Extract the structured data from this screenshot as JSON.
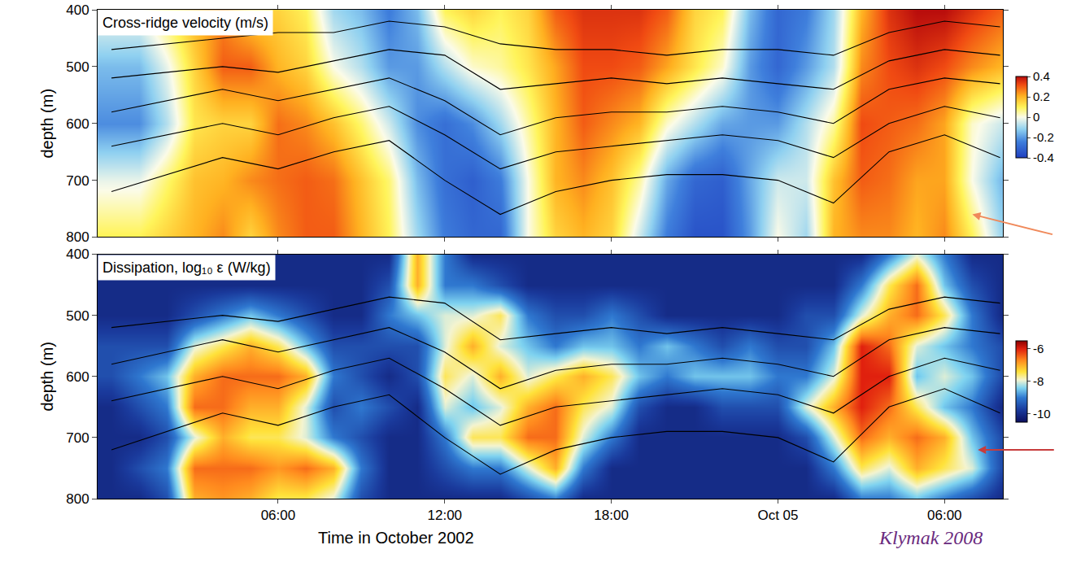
{
  "chart_data": [
    {
      "type": "heatmap",
      "title": "Cross-ridge velocity (m/s)",
      "ylabel": "depth (m)",
      "x": [
        0,
        1,
        2,
        3,
        4,
        5,
        6,
        7,
        8,
        9,
        10,
        11,
        12,
        13,
        14,
        15,
        16,
        17,
        18,
        19,
        20,
        21,
        22,
        23,
        24,
        25,
        26,
        27,
        28,
        29,
        30,
        31,
        32
      ],
      "y": [
        400,
        500,
        600,
        700,
        800
      ],
      "cells": [
        [
          0,
          -0.15,
          -0.22,
          -0.02,
          0.1
        ],
        [
          0,
          -0.15,
          -0.22,
          -0.02,
          0.1
        ],
        [
          0.1,
          -0.02,
          -0.08,
          0.08,
          0.15
        ],
        [
          0.2,
          0.15,
          0.12,
          0.18,
          0.2
        ],
        [
          0.25,
          0.3,
          0.15,
          0.2,
          0.25
        ],
        [
          0.15,
          0.3,
          0.15,
          0.25,
          0.15
        ],
        [
          0.15,
          0.2,
          0.28,
          0.28,
          0.25
        ],
        [
          0.1,
          0.15,
          0.25,
          0.3,
          0.3
        ],
        [
          -0.1,
          0,
          0.18,
          0.28,
          0.3
        ],
        [
          -0.15,
          -0.08,
          0.08,
          0.18,
          0.2
        ],
        [
          -0.25,
          -0.2,
          -0.05,
          0.08,
          0.1
        ],
        [
          -0.15,
          -0.2,
          -0.22,
          -0.15,
          -0.1
        ],
        [
          0.1,
          -0.08,
          -0.28,
          -0.28,
          -0.25
        ],
        [
          0.15,
          0.02,
          -0.22,
          -0.32,
          -0.3
        ],
        [
          0.1,
          0.05,
          -0.1,
          -0.25,
          -0.3
        ],
        [
          0.15,
          0.12,
          0.05,
          0,
          0
        ],
        [
          0.3,
          0.22,
          0.2,
          0.2,
          0.15
        ],
        [
          0.35,
          0.32,
          0.3,
          0.25,
          0.2
        ],
        [
          0.35,
          0.32,
          0.25,
          0.18,
          0.15
        ],
        [
          0.35,
          0.3,
          0.2,
          0.05,
          -0.05
        ],
        [
          0.3,
          0.22,
          0.02,
          -0.18,
          -0.25
        ],
        [
          0.15,
          0.12,
          -0.08,
          -0.3,
          -0.35
        ],
        [
          0.1,
          0.02,
          -0.18,
          -0.32,
          -0.35
        ],
        [
          -0.15,
          -0.2,
          -0.2,
          -0.18,
          -0.2
        ],
        [
          -0.3,
          -0.3,
          -0.2,
          -0.05,
          0
        ],
        [
          -0.25,
          -0.2,
          -0.08,
          -0.05,
          -0.1
        ],
        [
          -0.1,
          -0.08,
          0.05,
          0.18,
          0.2
        ],
        [
          0.2,
          0.25,
          0.32,
          0.3,
          0.25
        ],
        [
          0.35,
          0.32,
          0.3,
          0.28,
          0.25
        ],
        [
          0.4,
          0.35,
          0.28,
          0.22,
          0.2
        ],
        [
          0.4,
          0.32,
          0.22,
          0.22,
          0.25
        ],
        [
          0.35,
          0.25,
          0.02,
          0,
          0.1
        ],
        [
          0.3,
          0.2,
          -0.05,
          -0.15,
          -0.1
        ]
      ],
      "colorbar_range": [
        -0.4,
        0.4
      ],
      "colorbar_ticks": [
        0.4,
        0.2,
        0,
        -0.2,
        -0.4
      ],
      "isopycnals": {
        "color": "#000000",
        "x": [
          0,
          2,
          4,
          6,
          8,
          10,
          12,
          14,
          16,
          18,
          20,
          22,
          24,
          26,
          28,
          30,
          32
        ],
        "depths": [
          [
            470,
            460,
            450,
            440,
            440,
            420,
            430,
            460,
            470,
            470,
            480,
            470,
            470,
            480,
            440,
            420,
            430
          ],
          [
            520,
            510,
            500,
            510,
            490,
            470,
            480,
            540,
            530,
            520,
            530,
            520,
            530,
            540,
            490,
            470,
            480
          ],
          [
            580,
            560,
            540,
            560,
            540,
            520,
            560,
            620,
            590,
            580,
            580,
            570,
            580,
            600,
            540,
            520,
            530
          ],
          [
            640,
            620,
            600,
            620,
            590,
            570,
            620,
            680,
            650,
            640,
            630,
            620,
            630,
            660,
            600,
            570,
            590
          ],
          [
            720,
            690,
            660,
            680,
            650,
            630,
            700,
            760,
            720,
            700,
            690,
            690,
            700,
            740,
            650,
            620,
            660
          ]
        ]
      },
      "xlim": [
        -0.5,
        32.1
      ],
      "xticks": [
        {
          "value": 6,
          "label": "06:00"
        },
        {
          "value": 12,
          "label": "12:00"
        },
        {
          "value": 18,
          "label": "18:00"
        },
        {
          "value": 24,
          "label": "Oct 05"
        },
        {
          "value": 30,
          "label": "06:00"
        }
      ],
      "ylim": [
        800,
        400
      ],
      "yticks": [
        400,
        500,
        600,
        700,
        800
      ],
      "tick_labels": "y"
    },
    {
      "type": "heatmap",
      "title": "Dissipation, log₁₀ ε (W/kg)",
      "ylabel": "depth (m)",
      "xlabel": "Time in October 2002",
      "source": "Klymak 2008",
      "x": [
        0,
        1,
        2,
        3,
        4,
        5,
        6,
        7,
        8,
        9,
        10,
        11,
        12,
        13,
        14,
        15,
        16,
        17,
        18,
        19,
        20,
        21,
        22,
        23,
        24,
        25,
        26,
        27,
        28,
        29,
        30,
        31,
        32
      ],
      "y": [
        400,
        450,
        500,
        550,
        600,
        650,
        700,
        750,
        800
      ],
      "cells": [
        [
          -10,
          -10,
          -10,
          -9.5,
          -9.5,
          -10,
          -10,
          -10,
          -10
        ],
        [
          -10,
          -10,
          -10,
          -9.5,
          -9,
          -9.5,
          -10,
          -9.5,
          -10
        ],
        [
          -10,
          -10,
          -10,
          -9.5,
          -8.5,
          -9,
          -9.5,
          -9,
          -9.5
        ],
        [
          -10,
          -10,
          -9.5,
          -8,
          -7,
          -6.5,
          -8,
          -6.5,
          -7
        ],
        [
          -10,
          -10,
          -9,
          -7.5,
          -6.5,
          -6.5,
          -7,
          -6.5,
          -6.8
        ],
        [
          -10,
          -10,
          -8.5,
          -7,
          -6.5,
          -7,
          -7.5,
          -6.5,
          -7
        ],
        [
          -10,
          -10,
          -9,
          -7.5,
          -6.5,
          -7,
          -7.5,
          -6.8,
          -7.5
        ],
        [
          -10,
          -10,
          -9.5,
          -8.5,
          -7,
          -8,
          -8,
          -6.5,
          -7.5
        ],
        [
          -10,
          -10,
          -10,
          -9.5,
          -9,
          -9.5,
          -9,
          -7,
          -8
        ],
        [
          -10,
          -10,
          -10,
          -9.5,
          -9.5,
          -9,
          -9.5,
          -9,
          -9.5
        ],
        [
          -10,
          -9.5,
          -9,
          -9.5,
          -10,
          -9.5,
          -10,
          -10,
          -10
        ],
        [
          -7,
          -7,
          -8.5,
          -9.5,
          -9.5,
          -10,
          -10,
          -10,
          -10
        ],
        [
          -9,
          -9,
          -8,
          -8,
          -7.5,
          -8,
          -9,
          -9.5,
          -10
        ],
        [
          -10,
          -9,
          -8,
          -7,
          -8,
          -8.5,
          -7.5,
          -9,
          -10
        ],
        [
          -10,
          -9.5,
          -7.5,
          -8,
          -7,
          -8,
          -7.5,
          -9,
          -10
        ],
        [
          -10,
          -10,
          -9,
          -8.5,
          -8,
          -7,
          -6.5,
          -8,
          -9.5
        ],
        [
          -10,
          -10,
          -9.5,
          -9,
          -7.5,
          -6.5,
          -6.5,
          -7,
          -9
        ],
        [
          -10,
          -10,
          -9.5,
          -8.5,
          -7,
          -7.5,
          -8,
          -9,
          -10
        ],
        [
          -10,
          -10,
          -9,
          -8.5,
          -7.5,
          -8,
          -9,
          -10,
          -10
        ],
        [
          -10,
          -10,
          -9.5,
          -9,
          -8.5,
          -9.5,
          -10,
          -10,
          -10
        ],
        [
          -10,
          -10,
          -10,
          -8.5,
          -9,
          -10,
          -10,
          -10,
          -10
        ],
        [
          -10,
          -10,
          -10,
          -9,
          -8.5,
          -10,
          -10,
          -10,
          -10
        ],
        [
          -10,
          -10,
          -10,
          -9.5,
          -8.5,
          -9.5,
          -10,
          -10,
          -10
        ],
        [
          -10,
          -10,
          -10,
          -9,
          -8.5,
          -9.5,
          -10,
          -10,
          -10
        ],
        [
          -10,
          -10,
          -10,
          -9.5,
          -9,
          -9.5,
          -10,
          -10,
          -10
        ],
        [
          -10,
          -10,
          -9.5,
          -9.5,
          -9,
          -8,
          -9.5,
          -10,
          -10
        ],
        [
          -10,
          -10,
          -9.5,
          -8.5,
          -8,
          -7,
          -8,
          -9,
          -10
        ],
        [
          -10,
          -9,
          -8,
          -6,
          -6,
          -6,
          -6.5,
          -7.5,
          -9
        ],
        [
          -9,
          -7.5,
          -7,
          -6.5,
          -6,
          -6.5,
          -7,
          -8,
          -9
        ],
        [
          -8,
          -6.5,
          -6.5,
          -8,
          -8.5,
          -7.5,
          -6.5,
          -7,
          -8.5
        ],
        [
          -9,
          -8.5,
          -7.5,
          -8.5,
          -8,
          -8.5,
          -7,
          -7.5,
          -9
        ],
        [
          -10,
          -9.5,
          -9,
          -9,
          -8.5,
          -9,
          -8.5,
          -8,
          -9.5
        ],
        [
          -10,
          -10,
          -10,
          -9.5,
          -9.5,
          -10,
          -9.5,
          -9.5,
          -10
        ]
      ],
      "colorbar_range": [
        -10.5,
        -5.5
      ],
      "colorbar_ticks": [
        -6,
        -8,
        -10
      ],
      "isopycnals": {
        "color": "#000000",
        "x": [
          0,
          2,
          4,
          6,
          8,
          10,
          12,
          14,
          16,
          18,
          20,
          22,
          24,
          26,
          28,
          30,
          32
        ],
        "depths": [
          [
            520,
            510,
            500,
            510,
            490,
            470,
            480,
            540,
            530,
            520,
            530,
            520,
            530,
            540,
            490,
            470,
            480
          ],
          [
            580,
            560,
            540,
            560,
            540,
            520,
            560,
            620,
            590,
            580,
            580,
            570,
            580,
            600,
            540,
            520,
            530
          ],
          [
            640,
            620,
            600,
            620,
            590,
            570,
            620,
            680,
            650,
            640,
            630,
            620,
            630,
            660,
            600,
            570,
            590
          ],
          [
            720,
            690,
            660,
            680,
            650,
            630,
            700,
            760,
            720,
            700,
            690,
            690,
            700,
            740,
            650,
            620,
            660
          ]
        ]
      },
      "xlim": [
        -0.5,
        32.1
      ],
      "xticks": [
        {
          "value": 6,
          "label": "06:00"
        },
        {
          "value": 12,
          "label": "12:00"
        },
        {
          "value": 18,
          "label": "18:00"
        },
        {
          "value": 24,
          "label": "Oct 05"
        },
        {
          "value": 30,
          "label": "06:00"
        }
      ],
      "ylim": [
        800,
        400
      ],
      "yticks": [
        400,
        500,
        600,
        700,
        800
      ]
    }
  ]
}
